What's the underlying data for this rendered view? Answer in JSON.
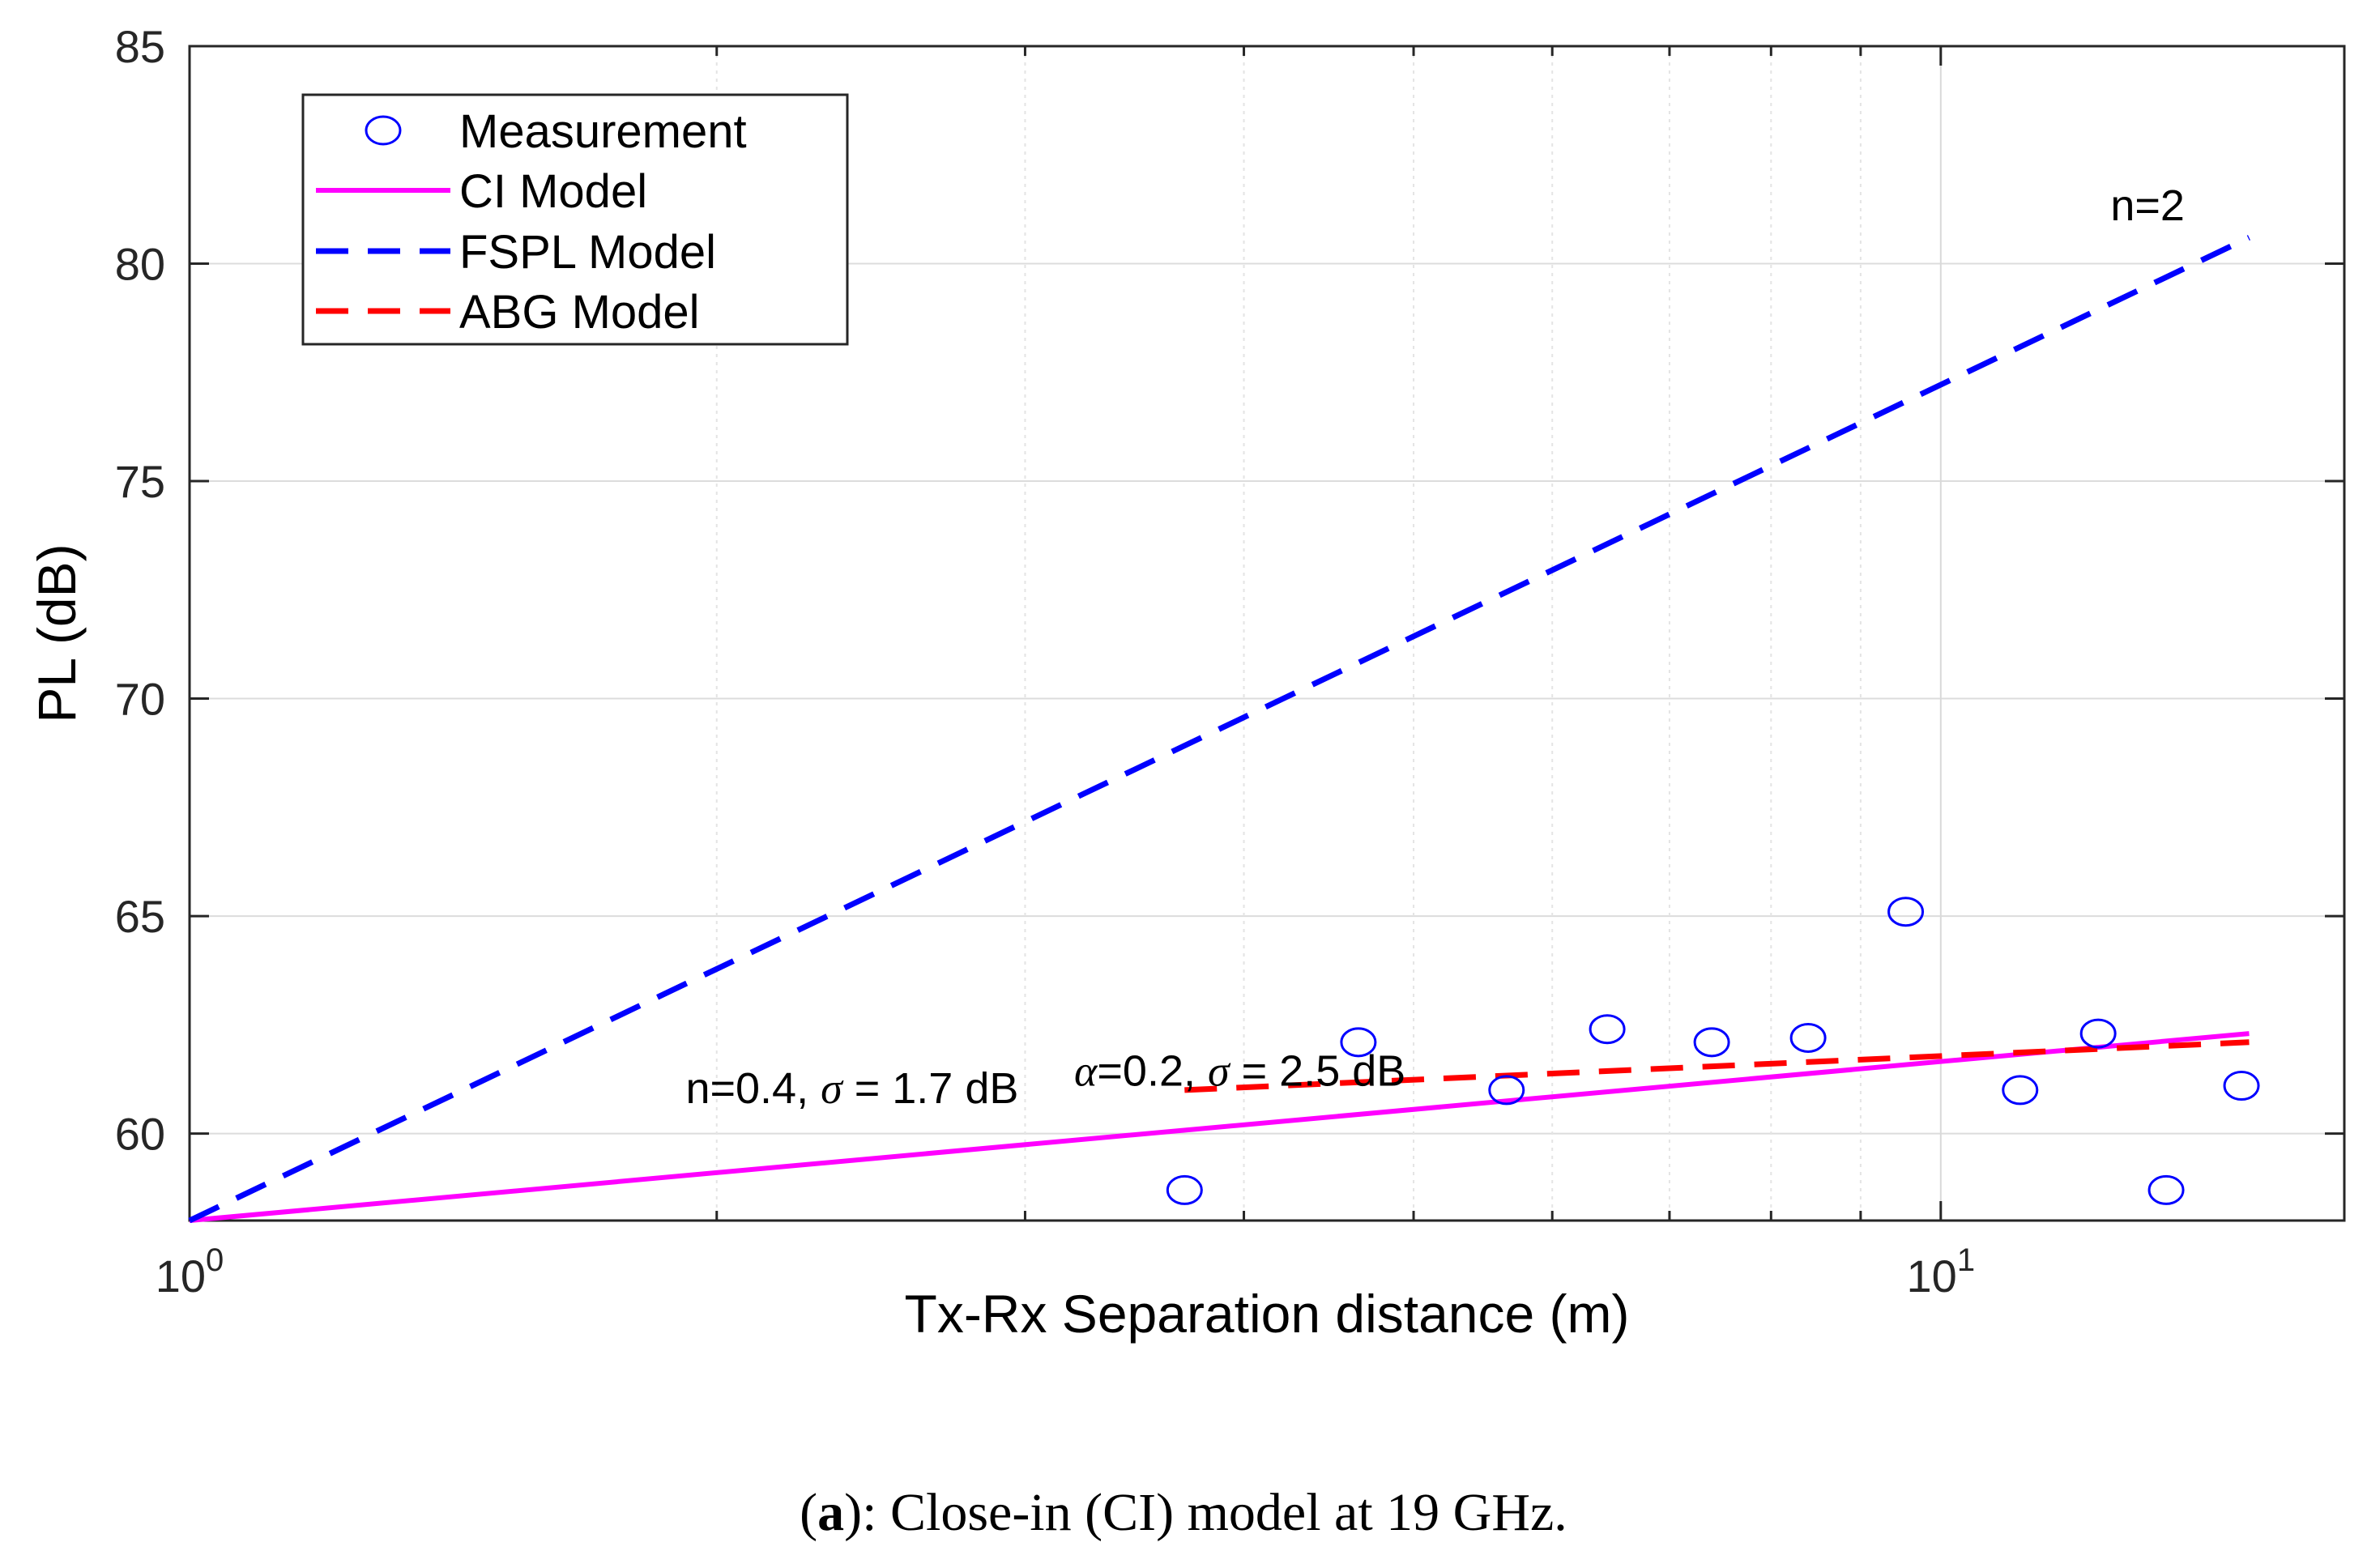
{
  "chart_data": {
    "type": "scatter",
    "title": "",
    "xlabel": "Tx-Rx Separation distance (m)",
    "ylabel": "PL (dB)",
    "xscale": "log",
    "xlim": [
      1,
      17
    ],
    "ylim": [
      58,
      85
    ],
    "x_ticks": [
      {
        "value": 1,
        "base": "10",
        "exp": "0"
      },
      {
        "value": 10,
        "base": "10",
        "exp": "1"
      }
    ],
    "y_ticks": [
      "60",
      "65",
      "70",
      "75",
      "80",
      "85"
    ],
    "grid": true,
    "legend_position": "top-left",
    "series": [
      {
        "name": "Measurement",
        "style": "markers",
        "color": "#0000ff",
        "x": [
          3.7,
          4.65,
          5.65,
          6.45,
          7.4,
          8.4,
          9.55,
          11.1,
          12.3,
          13.45,
          14.85
        ],
        "y": [
          58.7,
          62.1,
          61.0,
          62.4,
          62.1,
          62.2,
          65.1,
          61.0,
          62.3,
          58.7,
          61.1
        ]
      },
      {
        "name": "CI Model",
        "style": "solid",
        "color": "#ff00ff",
        "x": [
          1,
          15
        ],
        "y": [
          58.0,
          62.3
        ]
      },
      {
        "name": "FSPL Model",
        "style": "dashed",
        "color": "#0000ff",
        "x": [
          1,
          15
        ],
        "y": [
          58.0,
          80.6
        ]
      },
      {
        "name": "ABG Model",
        "style": "dashed",
        "color": "#ff0000",
        "x": [
          3.7,
          15
        ],
        "y": [
          61.0,
          62.1
        ]
      }
    ],
    "annotations": [
      {
        "id": "fspl",
        "text": "n=2",
        "x": 12.5,
        "y": 81.0
      },
      {
        "id": "ci",
        "prefix": "n=0.4, ",
        "symbol": "σ",
        "suffix": " = 1.7 dB",
        "x": 1.92,
        "y": 60.7
      },
      {
        "id": "abg",
        "prefix1": "α",
        "prefix2": "=0.2, ",
        "symbol": "σ",
        "suffix": " = 2.5 dB",
        "x": 3.2,
        "y": 61.1
      }
    ]
  },
  "caption": {
    "label": "a",
    "text": ": Close-in (CI) model at 19 GHz."
  }
}
